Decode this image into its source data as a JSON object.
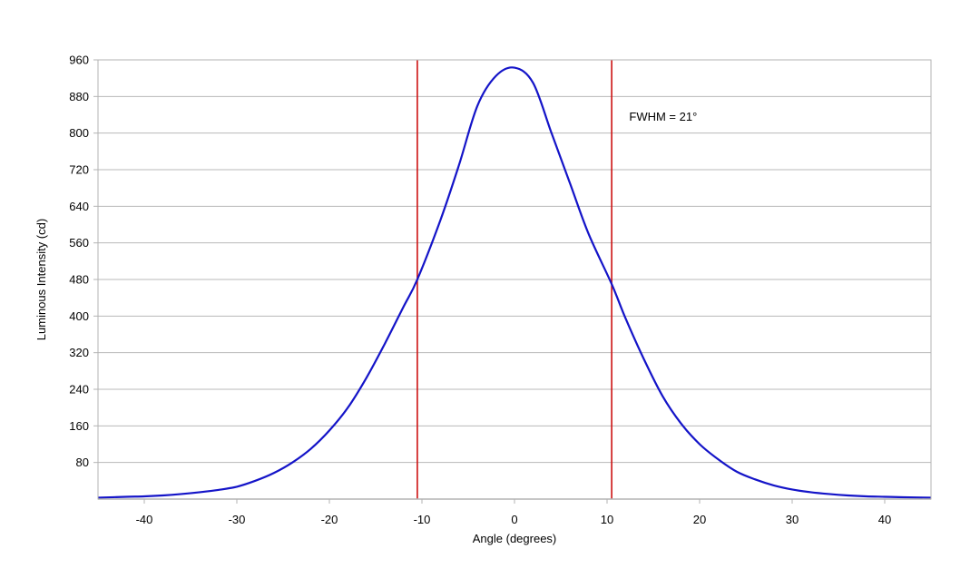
{
  "chart_data": {
    "type": "line",
    "title": "",
    "xlabel": "Angle (degrees)",
    "ylabel": "Luminous Intensity (cd)",
    "xlim": [
      -45,
      45
    ],
    "ylim": [
      0,
      960
    ],
    "x_ticks": [
      -40,
      -30,
      -20,
      -10,
      0,
      10,
      20,
      30,
      40
    ],
    "y_ticks": [
      80,
      160,
      240,
      320,
      400,
      480,
      560,
      640,
      720,
      800,
      880,
      960
    ],
    "grid": "horizontal",
    "series": [
      {
        "color": "#1414c8",
        "x": [
          -45,
          -42,
          -40,
          -38,
          -36,
          -34,
          -32,
          -30,
          -28,
          -26,
          -24,
          -22,
          -20,
          -18,
          -16,
          -14,
          -12,
          -10.5,
          -8,
          -6,
          -4,
          -2,
          0,
          2,
          4,
          6,
          8,
          10.5,
          12,
          14,
          16,
          18,
          20,
          22,
          24,
          26,
          28,
          30,
          32,
          34,
          36,
          38,
          40,
          42,
          45
        ],
        "y": [
          3,
          5,
          6,
          8,
          11,
          15,
          20,
          27,
          40,
          57,
          80,
          110,
          150,
          200,
          265,
          340,
          420,
          480,
          610,
          730,
          860,
          925,
          943,
          910,
          800,
          690,
          580,
          470,
          395,
          305,
          225,
          165,
          120,
          87,
          60,
          43,
          30,
          21,
          15,
          11,
          8,
          6,
          5,
          4,
          3
        ]
      }
    ],
    "vertical_lines": [
      {
        "x": -10.5,
        "color": "#cc1111"
      },
      {
        "x": 10.5,
        "color": "#cc1111"
      }
    ],
    "annotations": [
      {
        "text": "FWHM = 21°",
        "x": 12,
        "y": 835
      }
    ]
  }
}
